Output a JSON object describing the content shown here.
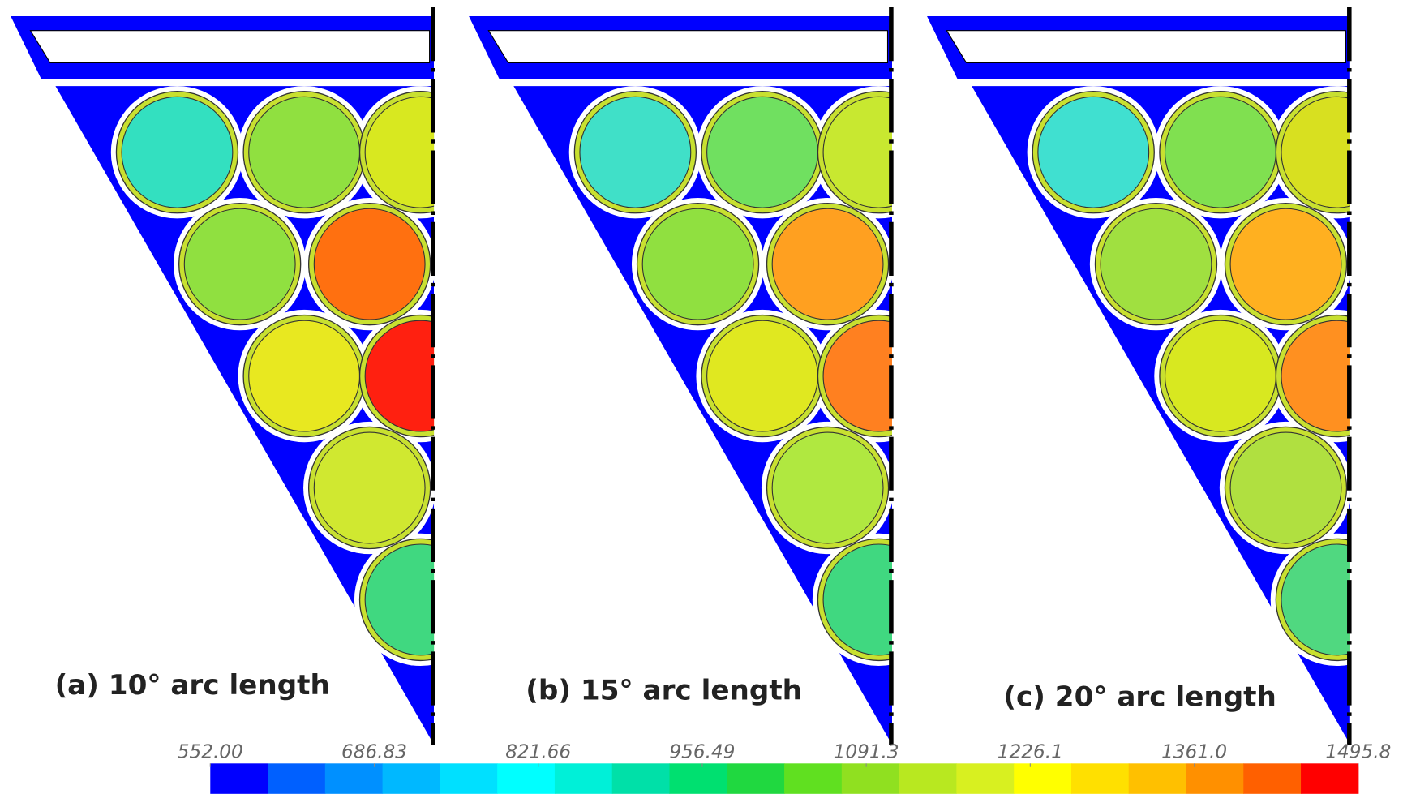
{
  "panels": [
    {
      "label": "(a) 10° arc length"
    },
    {
      "label": "(b) 15° arc length"
    },
    {
      "label": "(c) 20° arc length"
    }
  ],
  "colorbar": {
    "lim": [
      552.0,
      1495.8
    ],
    "ticks": [
      {
        "value": 552.0,
        "label": "552.00"
      },
      {
        "value": 686.83,
        "label": "686.83"
      },
      {
        "value": 821.66,
        "label": "821.66"
      },
      {
        "value": 956.49,
        "label": "956.49"
      },
      {
        "value": 1091.3,
        "label": "1091.3"
      },
      {
        "value": 1226.1,
        "label": "1226.1"
      },
      {
        "value": 1361.0,
        "label": "1361.0"
      },
      {
        "value": 1495.8,
        "label": "1495.8"
      }
    ],
    "colors": [
      "#0000ff",
      "#0060ff",
      "#0090ff",
      "#00b8ff",
      "#00e0ff",
      "#00ffff",
      "#00f0d8",
      "#00e0a8",
      "#00e070",
      "#20d840",
      "#60e020",
      "#90e020",
      "#b8e820",
      "#d8f020",
      "#ffff00",
      "#ffe000",
      "#ffc000",
      "#ff9000",
      "#ff6000",
      "#ff0000"
    ]
  }
}
